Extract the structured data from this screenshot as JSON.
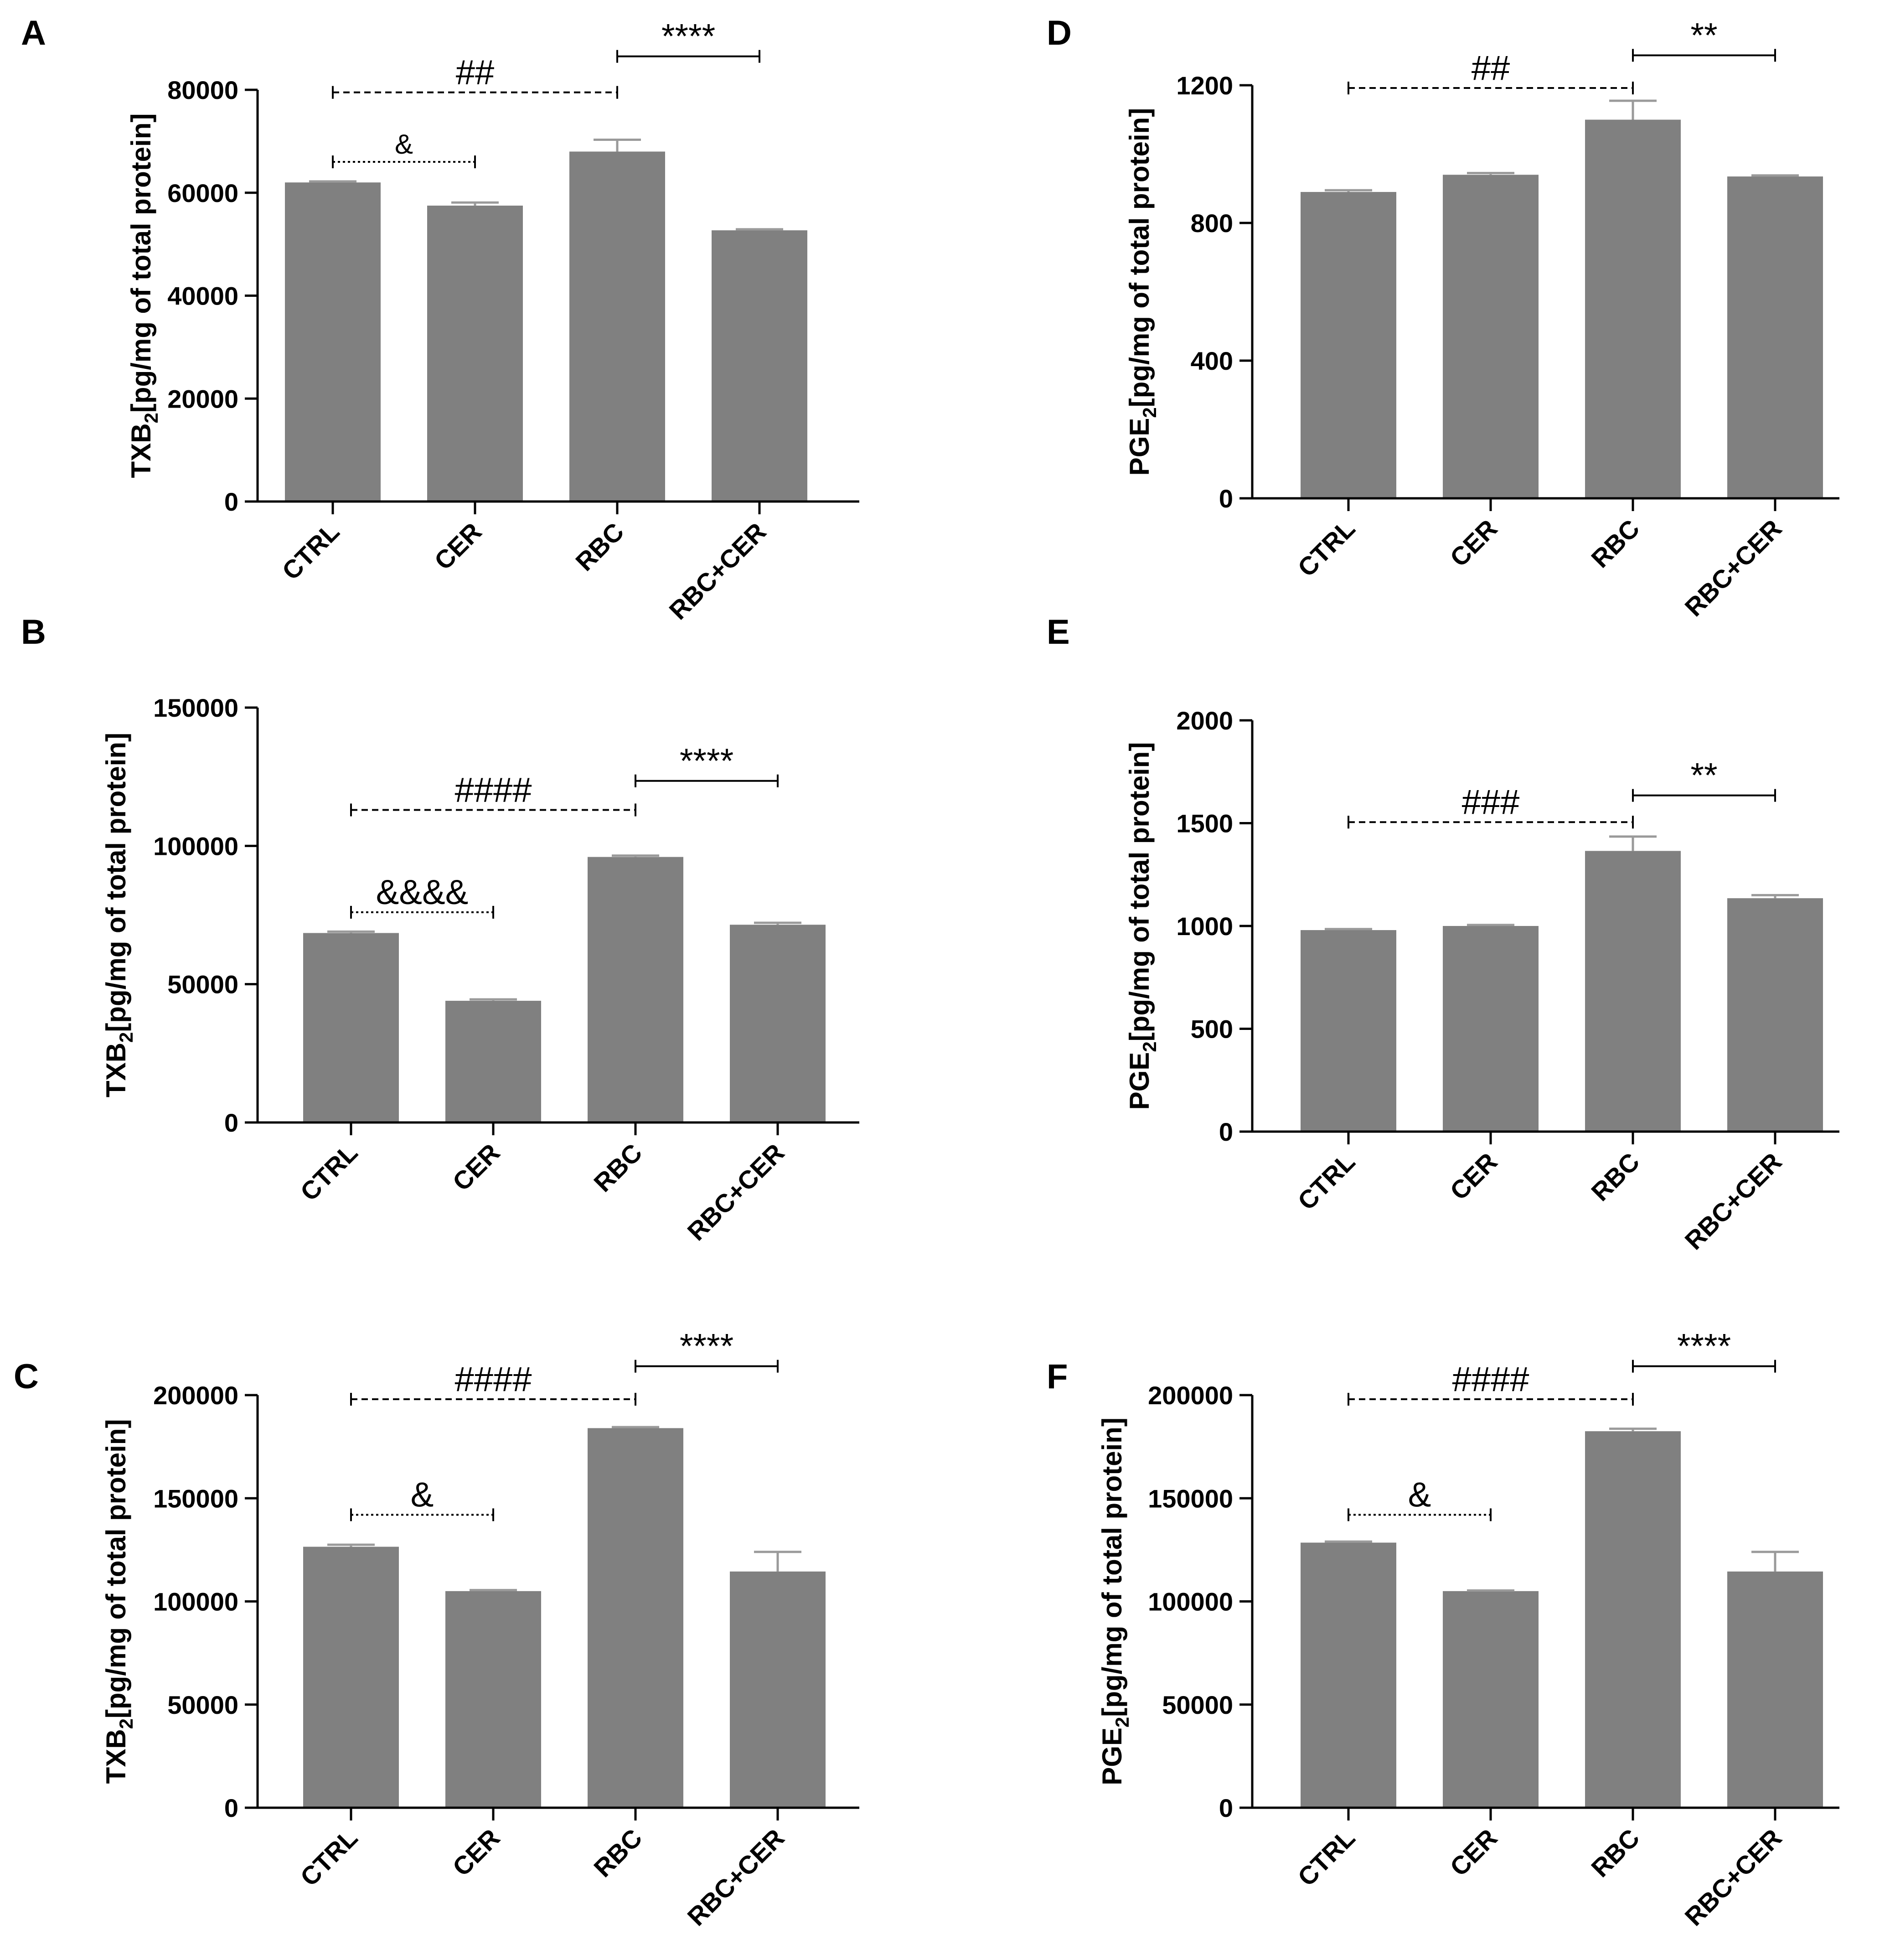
{
  "chart_data": [
    {
      "type": "bar",
      "panel": "A",
      "title": "",
      "xlabel": "",
      "ylabel_main": "TXB",
      "ylabel_sub": "2",
      "ylabel_rest": "[pg/mg of total protein]",
      "categories": [
        "CTRL",
        "CER",
        "RBC",
        "RBC+CER"
      ],
      "values": [
        62000,
        57500,
        68000,
        52700
      ],
      "errors": [
        200,
        600,
        2300,
        200
      ],
      "ylim": [
        0,
        80000
      ],
      "yticks": [
        0,
        20000,
        40000,
        60000,
        80000
      ],
      "ytick_labels": [
        "0",
        "20000",
        "40000",
        "60000",
        "80000"
      ],
      "bar_color": "#808080",
      "annotations": [
        {
          "text": "##",
          "from": 0,
          "to": 2,
          "y": 79500,
          "style": "dashed",
          "size": "large"
        },
        {
          "text": "****",
          "from": 2,
          "to": 3,
          "y": 86500,
          "style": "solid",
          "size": "large"
        },
        {
          "text": "&",
          "from": 0,
          "to": 1,
          "y": 66000,
          "style": "dotted",
          "size": "small"
        }
      ]
    },
    {
      "type": "bar",
      "panel": "B",
      "title": "",
      "xlabel": "",
      "ylabel_main": "TXB",
      "ylabel_sub": "2",
      "ylabel_rest": "[pg/mg of total protein]",
      "categories": [
        "CTRL",
        "CER",
        "RBC",
        "RBC+CER"
      ],
      "values": [
        68500,
        44000,
        96000,
        71500
      ],
      "errors": [
        500,
        500,
        500,
        700
      ],
      "ylim": [
        0,
        150000
      ],
      "yticks": [
        0,
        50000,
        100000,
        150000
      ],
      "ytick_labels": [
        "0",
        "50000",
        "100000",
        "150000"
      ],
      "bar_color": "#808080",
      "annotations": [
        {
          "text": "####",
          "from": 0,
          "to": 2,
          "y": 113000,
          "style": "dashed",
          "size": "large"
        },
        {
          "text": "****",
          "from": 2,
          "to": 3,
          "y": 123500,
          "style": "solid",
          "size": "large"
        },
        {
          "text": "&&&&",
          "from": 0,
          "to": 1,
          "y": 76000,
          "style": "dotted",
          "size": "large"
        }
      ]
    },
    {
      "type": "bar",
      "panel": "C",
      "title": "",
      "xlabel": "",
      "ylabel_main": "TXB",
      "ylabel_sub": "2",
      "ylabel_rest": "[pg/mg of total protein]",
      "categories": [
        "CTRL",
        "CER",
        "RBC",
        "RBC+CER"
      ],
      "values": [
        126500,
        105000,
        184000,
        114500
      ],
      "errors": [
        1000,
        500,
        500,
        9500
      ],
      "ylim": [
        0,
        200000
      ],
      "yticks": [
        0,
        50000,
        100000,
        150000,
        200000
      ],
      "ytick_labels": [
        "0",
        "50000",
        "100000",
        "150000",
        "200000"
      ],
      "bar_color": "#808080",
      "annotations": [
        {
          "text": "####",
          "from": 0,
          "to": 2,
          "y": 198000,
          "style": "dashed",
          "size": "large"
        },
        {
          "text": "****",
          "from": 2,
          "to": 3,
          "y": 214000,
          "style": "solid",
          "size": "large"
        },
        {
          "text": "&",
          "from": 0,
          "to": 1,
          "y": 142000,
          "style": "dotted",
          "size": "large"
        }
      ]
    },
    {
      "type": "bar",
      "panel": "D",
      "title": "",
      "xlabel": "",
      "ylabel_main": "PGE",
      "ylabel_sub": "2",
      "ylabel_rest": "[pg/mg of total protein]",
      "categories": [
        "CTRL",
        "CER",
        "RBC",
        "RBC+CER"
      ],
      "values": [
        890,
        940,
        1100,
        935
      ],
      "errors": [
        5,
        5,
        55,
        3
      ],
      "ylim": [
        0,
        1200
      ],
      "yticks": [
        0,
        400,
        800,
        1200
      ],
      "ytick_labels": [
        "0",
        "400",
        "800",
        "1200"
      ],
      "bar_color": "#808080",
      "annotations": [
        {
          "text": "##",
          "from": 0,
          "to": 2,
          "y": 1192,
          "style": "dashed",
          "size": "large"
        },
        {
          "text": "**",
          "from": 2,
          "to": 3,
          "y": 1287,
          "style": "solid",
          "size": "large"
        }
      ]
    },
    {
      "type": "bar",
      "panel": "E",
      "title": "",
      "xlabel": "",
      "ylabel_main": "PGE",
      "ylabel_sub": "2",
      "ylabel_rest": "[pg/mg of total protein]",
      "categories": [
        "CTRL",
        "CER",
        "RBC",
        "RBC+CER"
      ],
      "values": [
        980,
        1000,
        1365,
        1135
      ],
      "errors": [
        5,
        5,
        70,
        15
      ],
      "ylim": [
        0,
        2000
      ],
      "yticks": [
        0,
        500,
        1000,
        1500,
        2000
      ],
      "ytick_labels": [
        "0",
        "500",
        "1000",
        "1500",
        "2000"
      ],
      "bar_color": "#808080",
      "annotations": [
        {
          "text": "###",
          "from": 0,
          "to": 2,
          "y": 1505,
          "style": "dashed",
          "size": "large"
        },
        {
          "text": "**",
          "from": 2,
          "to": 3,
          "y": 1635,
          "style": "solid",
          "size": "large"
        }
      ]
    },
    {
      "type": "bar",
      "panel": "F",
      "title": "",
      "xlabel": "",
      "ylabel_main": "PGE",
      "ylabel_sub": "2",
      "ylabel_rest": "[pg/mg of total protein]",
      "categories": [
        "CTRL",
        "CER",
        "RBC",
        "RBC+CER"
      ],
      "values": [
        128500,
        105000,
        182500,
        114500
      ],
      "errors": [
        500,
        300,
        1200,
        9500
      ],
      "ylim": [
        0,
        200000
      ],
      "yticks": [
        0,
        50000,
        100000,
        150000,
        200000
      ],
      "ytick_labels": [
        "0",
        "50000",
        "100000",
        "150000",
        "200000"
      ],
      "bar_color": "#808080",
      "annotations": [
        {
          "text": "####",
          "from": 0,
          "to": 2,
          "y": 198000,
          "style": "dashed",
          "size": "large"
        },
        {
          "text": "****",
          "from": 2,
          "to": 3,
          "y": 214000,
          "style": "solid",
          "size": "large"
        },
        {
          "text": "&",
          "from": 0,
          "to": 1,
          "y": 142000,
          "style": "dotted",
          "size": "large"
        }
      ]
    }
  ]
}
